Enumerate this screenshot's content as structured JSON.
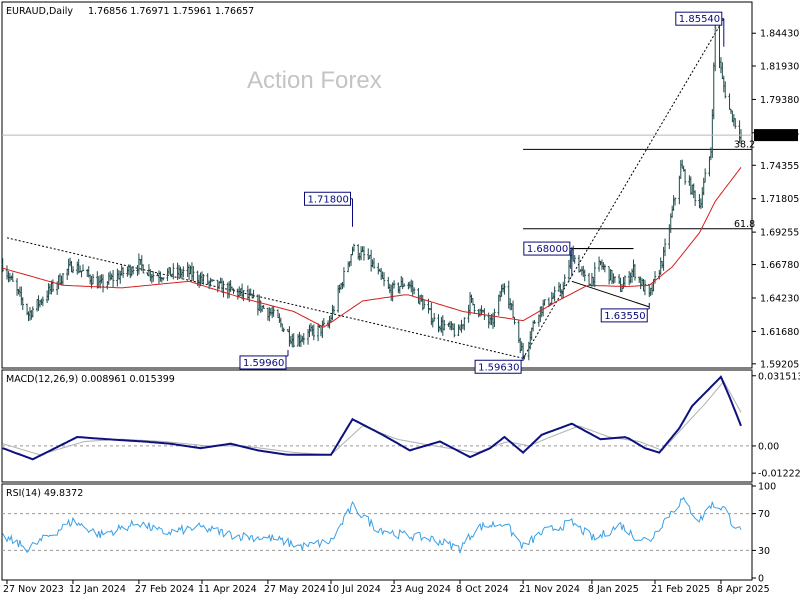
{
  "header": {
    "symbol": "EURAUD,Daily",
    "ohlc": "1.76856 1.76971 1.75961 1.76657"
  },
  "watermark": "Action Forex",
  "price_scale": {
    "ticks": [
      "1.84430",
      "1.81930",
      "1.79380",
      "1.76835",
      "1.74355",
      "1.71805",
      "1.69255",
      "1.66780",
      "1.64230",
      "1.61680",
      "1.59205"
    ],
    "current": "1.76657"
  },
  "fib_labels": {
    "f382": "38.2",
    "f618": "61.8"
  },
  "swing_labels": [
    "1.85540",
    "1.71800",
    "1.68000",
    "1.63550",
    "1.59960",
    "1.59630"
  ],
  "macd": {
    "title": "MACD(12,26,9) 0.008961 0.015399",
    "ticks": [
      "0.031513",
      "0.00",
      "-0.012223"
    ]
  },
  "rsi": {
    "title": "RSI(14) 49.8372",
    "ticks": [
      "100",
      "70",
      "30",
      "0"
    ]
  },
  "date_ticks": [
    "27 Nov 2023",
    "12 Jan 2024",
    "27 Feb 2024",
    "11 Apr 2024",
    "27 May 2024",
    "10 Jul 2024",
    "23 Aug 2024",
    "8 Oct 2024",
    "21 Nov 2024",
    "8 Jan 2025",
    "21 Feb 2025",
    "8 Apr 2025"
  ],
  "colors": {
    "bars": "#1f4a4a",
    "ma": "#d41f1f",
    "macd": "#0d1180",
    "signal": "#b0b0b0",
    "rsi": "#3aa0e6",
    "label_text": "#0a0a78",
    "level_line": "#000000"
  },
  "chart_data": [
    {
      "type": "line",
      "title": "EURAUD,Daily",
      "xlabel": "",
      "ylabel": "",
      "x_range": [
        "2023-11-27",
        "2025-04-22"
      ],
      "ylim": [
        1.5904,
        1.8666
      ],
      "grid": false,
      "anchor_dates": [
        "2023-11-24",
        "2023-12-12",
        "2024-01-12",
        "2024-01-31",
        "2024-02-27",
        "2024-03-08",
        "2024-04-01",
        "2024-04-19",
        "2024-05-10",
        "2024-05-30",
        "2024-06-14",
        "2024-07-08",
        "2024-07-25",
        "2024-08-05",
        "2024-08-20",
        "2024-09-01",
        "2024-09-20",
        "2024-10-07",
        "2024-10-15",
        "2024-10-30",
        "2024-11-08",
        "2024-11-21",
        "2024-12-01",
        "2024-12-19",
        "2024-12-25",
        "2025-01-05",
        "2025-01-14",
        "2025-01-28",
        "2025-02-06",
        "2025-02-17",
        "2025-02-27",
        "2025-03-11",
        "2025-03-24",
        "2025-04-01",
        "2025-04-04",
        "2025-04-09",
        "2025-04-14",
        "2025-04-22"
      ],
      "anchor_close": [
        1.668,
        1.63,
        1.668,
        1.652,
        1.668,
        1.66,
        1.662,
        1.652,
        1.645,
        1.63,
        1.61,
        1.621,
        1.68,
        1.672,
        1.647,
        1.655,
        1.625,
        1.615,
        1.64,
        1.622,
        1.655,
        1.598,
        1.632,
        1.65,
        1.677,
        1.652,
        1.668,
        1.65,
        1.664,
        1.643,
        1.674,
        1.742,
        1.713,
        1.755,
        1.848,
        1.808,
        1.786,
        1.766
      ],
      "moving_average": {
        "color": "#d41f1f",
        "anchor_dates": [
          "2023-11-24",
          "2024-01-05",
          "2024-02-15",
          "2024-04-02",
          "2024-05-10",
          "2024-06-14",
          "2024-07-05",
          "2024-08-01",
          "2024-09-01",
          "2024-10-10",
          "2024-11-21",
          "2024-12-15",
          "2025-01-05",
          "2025-02-01",
          "2025-02-17",
          "2025-03-05",
          "2025-03-24",
          "2025-04-04",
          "2025-04-22"
        ],
        "anchor_values": [
          1.665,
          1.652,
          1.65,
          1.655,
          1.642,
          1.632,
          1.62,
          1.64,
          1.645,
          1.632,
          1.625,
          1.64,
          1.652,
          1.651,
          1.652,
          1.666,
          1.692,
          1.716,
          1.742
        ]
      },
      "levels": [
        {
          "value": 1.7557,
          "label": "38.2",
          "from": "2024-11-21"
        },
        {
          "value": 1.6951,
          "label": "61.8",
          "from": "2024-11-21"
        }
      ],
      "annotations": [
        {
          "date": "2025-04-10",
          "value": 1.8554,
          "label": "1.85540"
        },
        {
          "date": "2024-07-25",
          "value": 1.718,
          "label": "1.71800"
        },
        {
          "date": "2024-12-25",
          "value": 1.68,
          "label": "1.68000"
        },
        {
          "date": "2025-02-17",
          "value": 1.6355,
          "label": "1.63550"
        },
        {
          "date": "2024-06-10",
          "value": 1.5996,
          "label": "1.59960"
        },
        {
          "date": "2024-11-21",
          "value": 1.5963,
          "label": "1.59630"
        }
      ],
      "trendlines": [
        {
          "from": [
            "2023-11-27",
            1.6882
          ],
          "to": [
            "2024-11-21",
            1.5963
          ],
          "style": "dashed"
        },
        {
          "from": [
            "2024-11-21",
            1.5963
          ],
          "to": [
            "2025-04-10",
            1.8554
          ],
          "style": "dashed"
        },
        {
          "from": [
            "2024-12-25",
            1.655
          ],
          "to": [
            "2025-02-17",
            1.6355
          ],
          "style": "solid"
        }
      ],
      "current_price": 1.76657
    },
    {
      "type": "line",
      "title": "MACD(12,26,9) 0.008961 0.015399",
      "ylim": [
        -0.0153,
        0.0332
      ],
      "zero_line": true,
      "series": [
        {
          "name": "MACD",
          "color": "#0d1180",
          "anchor_dates": [
            "2023-11-24",
            "2023-12-15",
            "2024-01-15",
            "2024-02-05",
            "2024-03-01",
            "2024-03-20",
            "2024-04-10",
            "2024-05-01",
            "2024-05-20",
            "2024-06-10",
            "2024-06-25",
            "2024-07-10",
            "2024-07-25",
            "2024-08-15",
            "2024-09-03",
            "2024-09-24",
            "2024-10-15",
            "2024-10-29",
            "2024-11-08",
            "2024-11-21",
            "2024-12-04",
            "2024-12-25",
            "2025-01-14",
            "2025-02-01",
            "2025-02-14",
            "2025-02-24",
            "2025-03-10",
            "2025-03-19",
            "2025-04-08",
            "2025-04-14",
            "2025-04-22"
          ],
          "anchor_values": [
            -0.001,
            -0.006,
            0.004,
            0.003,
            0.002,
            0.001,
            -0.001,
            0.001,
            -0.002,
            -0.004,
            -0.004,
            -0.004,
            0.012,
            0.005,
            -0.002,
            0.002,
            -0.005,
            -0.001,
            0.004,
            -0.003,
            0.005,
            0.01,
            0.003,
            0.004,
            -0.001,
            -0.003,
            0.008,
            0.018,
            0.031,
            0.022,
            0.009
          ]
        },
        {
          "name": "Signal",
          "color": "#b0b0b0",
          "anchor_dates": [
            "2023-11-24",
            "2023-12-20",
            "2024-01-20",
            "2024-02-15",
            "2024-03-15",
            "2024-04-15",
            "2024-05-10",
            "2024-06-15",
            "2024-07-10",
            "2024-08-01",
            "2024-08-25",
            "2024-09-20",
            "2024-10-20",
            "2024-11-10",
            "2024-11-25",
            "2024-12-10",
            "2024-12-30",
            "2025-01-20",
            "2025-02-10",
            "2025-02-26",
            "2025-03-15",
            "2025-03-28",
            "2025-04-10",
            "2025-04-22"
          ],
          "anchor_values": [
            0.001,
            -0.004,
            0.002,
            0.003,
            0.002,
            0.0,
            0.0,
            -0.003,
            -0.004,
            0.009,
            0.003,
            0.0,
            -0.003,
            0.002,
            0.0,
            0.004,
            0.009,
            0.004,
            0.002,
            -0.002,
            0.01,
            0.019,
            0.029,
            0.015
          ]
        }
      ]
    },
    {
      "type": "line",
      "title": "RSI(14) 49.8372",
      "ylim": [
        0,
        100
      ],
      "levels": [
        70,
        30
      ],
      "series": [
        {
          "name": "RSI(14)",
          "color": "#3aa0e6",
          "anchor_dates": [
            "2023-11-24",
            "2023-12-12",
            "2024-01-12",
            "2024-01-31",
            "2024-02-27",
            "2024-03-15",
            "2024-04-10",
            "2024-05-05",
            "2024-05-30",
            "2024-06-20",
            "2024-07-10",
            "2024-07-25",
            "2024-08-10",
            "2024-08-25",
            "2024-09-20",
            "2024-10-08",
            "2024-10-20",
            "2024-11-08",
            "2024-11-21",
            "2024-12-05",
            "2024-12-25",
            "2025-01-10",
            "2025-01-28",
            "2025-02-06",
            "2025-02-17",
            "2025-03-01",
            "2025-03-12",
            "2025-03-24",
            "2025-04-01",
            "2025-04-10",
            "2025-04-16",
            "2025-04-22"
          ],
          "anchor_values": [
            45,
            32,
            62,
            47,
            60,
            49,
            55,
            46,
            43,
            34,
            40,
            78,
            55,
            48,
            42,
            32,
            55,
            60,
            34,
            50,
            60,
            42,
            58,
            46,
            40,
            66,
            85,
            62,
            80,
            76,
            60,
            50
          ]
        }
      ]
    }
  ]
}
